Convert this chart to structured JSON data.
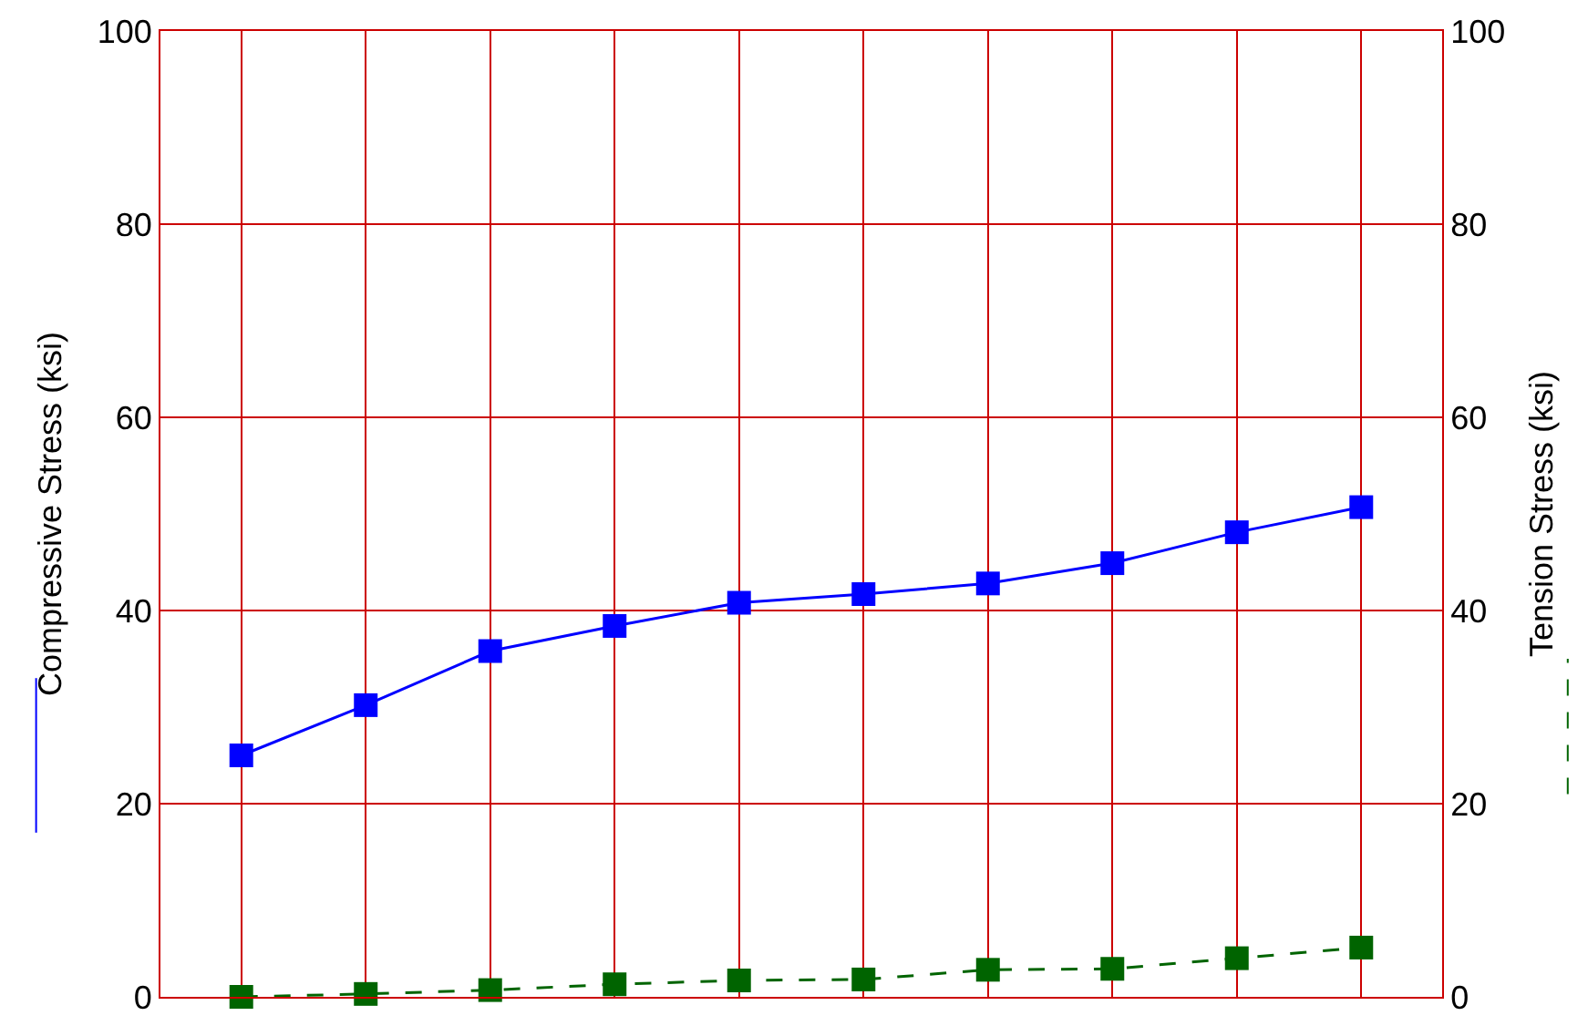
{
  "chart_data": {
    "type": "line",
    "ylabel": "Compressive Stress (ksi)",
    "y2label": "Tension Stress (ksi)",
    "categories": [
      null,
      null,
      null,
      null,
      null,
      null,
      null,
      null,
      null,
      null
    ],
    "ylim": [
      0,
      100
    ],
    "yticks": [
      0,
      20,
      40,
      60,
      80,
      100
    ],
    "y2lim": [
      0,
      100
    ],
    "y2ticks": [
      0,
      20,
      40,
      60,
      80,
      100
    ],
    "tick_labels": "y",
    "grid": true,
    "marker": "square",
    "series": [
      {
        "color": "#0000ff",
        "line_style": "solid",
        "values": [
          25,
          30.2,
          35.8,
          38.4,
          40.8,
          41.7,
          42.8,
          44.9,
          48.1,
          50.7
        ]
      },
      {
        "color": "#006400",
        "line_style": "dashed",
        "axis": "y2",
        "values": [
          0,
          0.3,
          0.7,
          1.3,
          1.7,
          1.8,
          2.8,
          2.9,
          4.0,
          5.1
        ]
      }
    ]
  }
}
